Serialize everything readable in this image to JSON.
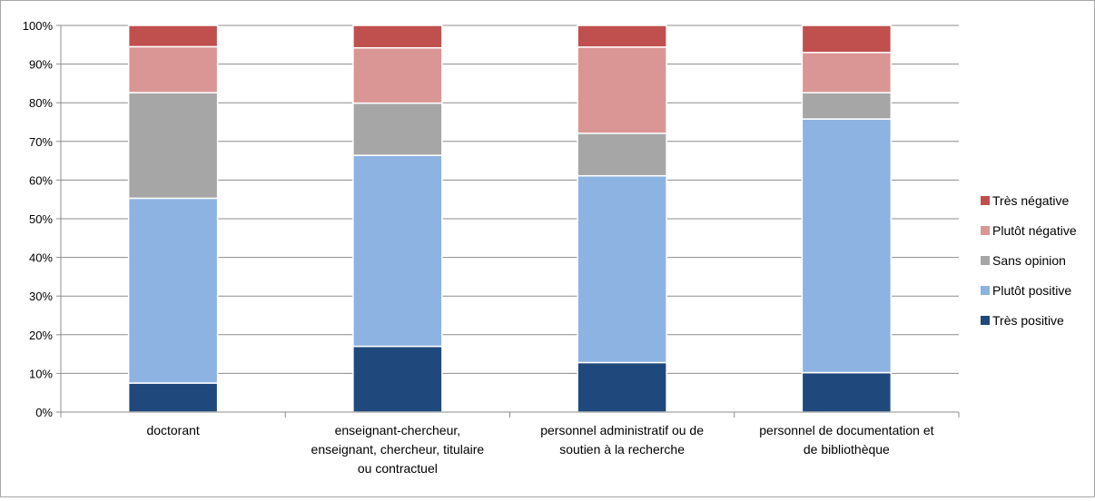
{
  "chart_data": {
    "type": "bar",
    "stacked": true,
    "percent": true,
    "title": "",
    "xlabel": "",
    "ylabel": "",
    "ylim": [
      0,
      100
    ],
    "yticks": [
      "0%",
      "10%",
      "20%",
      "30%",
      "40%",
      "50%",
      "60%",
      "70%",
      "80%",
      "90%",
      "100%"
    ],
    "grid": true,
    "legend_position": "right",
    "categories": [
      [
        "doctorant"
      ],
      [
        "enseignant-chercheur,",
        "enseignant, chercheur, titulaire",
        "ou contractuel"
      ],
      [
        "personnel administratif ou de",
        "soutien à la recherche"
      ],
      [
        "personnel de documentation et",
        "de bibliothèque"
      ]
    ],
    "series": [
      {
        "name": "Très positive",
        "color": "#1f497d",
        "values": [
          7.5,
          17,
          12.8,
          10.2
        ]
      },
      {
        "name": "Plutôt positive",
        "color": "#8db3e2",
        "values": [
          47.8,
          49.4,
          48.3,
          65.6
        ]
      },
      {
        "name": "Sans opinion",
        "color": "#a6a6a6",
        "values": [
          27.3,
          13.5,
          11,
          6.8
        ]
      },
      {
        "name": "Plutôt négative",
        "color": "#da9694",
        "values": [
          11.9,
          14.3,
          22.3,
          10.4
        ]
      },
      {
        "name": "Très négative",
        "color": "#c0504d",
        "values": [
          5.5,
          5.8,
          5.6,
          7
        ]
      }
    ]
  }
}
